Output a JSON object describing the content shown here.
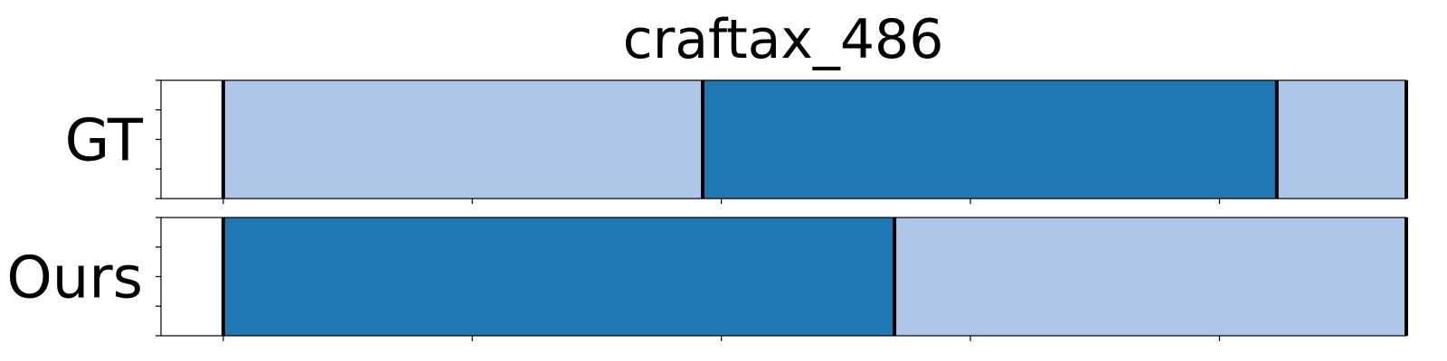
{
  "chart_data": {
    "type": "segmentation-timeline",
    "title": "craftax_486",
    "x_range": [
      0,
      100
    ],
    "colors": {
      "light": "#aec7e8",
      "dark": "#1f77b4",
      "boundary": "#000000",
      "frame": "#000000"
    },
    "rows": [
      {
        "label": "GT",
        "segments": [
          {
            "start": 5,
            "end": 43.5,
            "color": "light"
          },
          {
            "start": 43.5,
            "end": 89.6,
            "color": "dark"
          },
          {
            "start": 89.6,
            "end": 105,
            "color": "light"
          }
        ],
        "boundaries": [
          5,
          43.5,
          89.6,
          105
        ]
      },
      {
        "label": "Ours",
        "segments": [
          {
            "start": 5,
            "end": 58.9,
            "color": "dark"
          },
          {
            "start": 58.9,
            "end": 105,
            "color": "light"
          }
        ],
        "boundaries": [
          5,
          58.9,
          105
        ]
      }
    ],
    "x_ticks": [
      5,
      25,
      45,
      65,
      85,
      105
    ],
    "grid": false
  }
}
